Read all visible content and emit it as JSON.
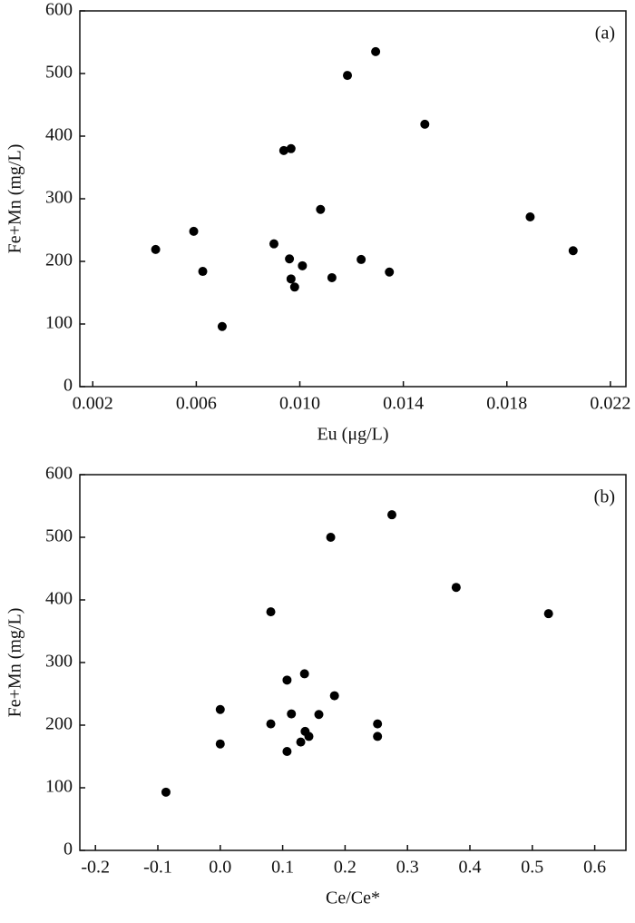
{
  "chart_data": [
    {
      "type": "scatter",
      "annotation": "(a)",
      "x_label": "Eu (μg/L)",
      "y_label": "Fe+Mn (mg/L)",
      "color": "#000000",
      "grid": false,
      "x": [
        0.00443,
        0.0059,
        0.00625,
        0.007,
        0.009,
        0.00938,
        0.00966,
        0.0096,
        0.00966,
        0.0098,
        0.0101,
        0.0108,
        0.01124,
        0.01184,
        0.01237,
        0.01293,
        0.01346,
        0.01483,
        0.0189,
        0.02056
      ],
      "values": [
        219,
        248,
        184,
        96,
        228,
        377,
        380,
        204,
        172,
        159,
        193,
        283,
        174,
        497,
        203,
        535,
        183,
        419,
        271,
        217
      ],
      "xlim": [
        0.0015,
        0.0226
      ],
      "xticks": [
        0.002,
        0.006,
        {
          "value": 0.01,
          "label": "0.010"
        },
        0.014,
        0.018,
        0.022
      ],
      "ylim": [
        0,
        600
      ],
      "yticks": [
        0,
        100,
        200,
        300,
        400,
        500,
        600
      ]
    },
    {
      "type": "scatter",
      "annotation": "(b)",
      "x_label": "Ce/Ce*",
      "y_label": "Fe+Mn (mg/L)",
      "color": "#000000",
      "grid": false,
      "x": [
        -0.087,
        0.0,
        0.0,
        0.081,
        0.081,
        0.107,
        0.114,
        0.107,
        0.129,
        0.135,
        0.136,
        0.142,
        0.158,
        0.177,
        0.183,
        0.252,
        0.252,
        0.275,
        0.378,
        0.526
      ],
      "values": [
        93,
        225,
        170,
        381,
        202,
        272,
        218,
        158,
        173,
        282,
        190,
        182,
        217,
        500,
        247,
        202,
        182,
        536,
        420,
        378
      ],
      "xlim": [
        -0.225,
        0.65
      ],
      "xticks": [
        -0.2,
        -0.1,
        {
          "value": 0,
          "label": "0.0"
        },
        0.1,
        0.2,
        0.3,
        0.4,
        0.5,
        0.6
      ],
      "ylim": [
        0,
        600
      ],
      "yticks": [
        0,
        100,
        200,
        300,
        400,
        500,
        600
      ]
    }
  ]
}
